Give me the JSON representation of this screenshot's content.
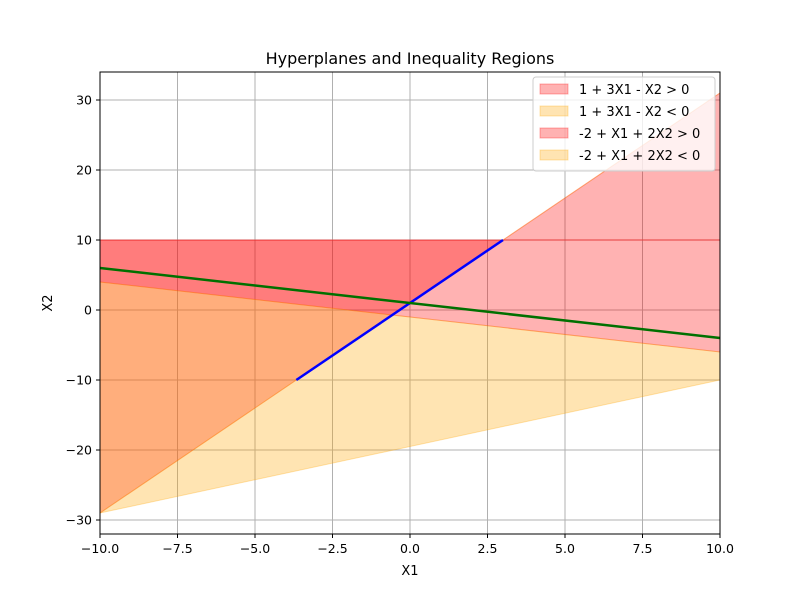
{
  "chart_data": {
    "type": "area",
    "title": "Hyperplanes and Inequality Regions",
    "xlabel": "X1",
    "ylabel": "X2",
    "xlim": [
      -10,
      10
    ],
    "ylim": [
      -32,
      34
    ],
    "grid": true,
    "legend_placement": "top-right",
    "x_ticks": [
      -10,
      -7.5,
      -5,
      -2.5,
      0,
      2.5,
      5,
      7.5,
      10
    ],
    "x_tick_labels": [
      "−10.0",
      "−7.5",
      "−5.0",
      "−2.5",
      "0.0",
      "2.5",
      "5.0",
      "7.5",
      "10.0"
    ],
    "y_ticks": [
      -30,
      -20,
      -10,
      0,
      10,
      20,
      30
    ],
    "y_tick_labels": [
      "−30",
      "−20",
      "−10",
      "0",
      "10",
      "20",
      "30"
    ],
    "regions": [
      {
        "name": "1 + 3X1 - X2 > 0",
        "color": "#ff0000",
        "opacity": 0.3,
        "lower_x": [
          -10,
          10
        ],
        "lower_y": [
          -29,
          31
        ],
        "upper_x": [
          -10,
          3,
          10
        ],
        "upper_y": [
          10,
          10,
          10
        ],
        "x_range": [
          -3.667,
          3
        ]
      },
      {
        "name": "1 + 3X1 - X2 < 0",
        "color": "#ffa500",
        "opacity": 0.3,
        "x_range": [
          -10,
          10
        ],
        "lower_x": [
          -10,
          10
        ],
        "lower_y": [
          -29,
          31
        ],
        "upper_x": [
          -10,
          -3.667,
          3,
          10
        ],
        "upper_y": [
          -29,
          -10,
          10,
          31
        ]
      },
      {
        "name": "-2 + X1 + 2X2 > 0",
        "color": "#ff0000",
        "opacity": 0.3,
        "lower_x": [
          -10,
          10
        ],
        "lower_y": [
          4,
          -6
        ],
        "upper_x": [
          -10,
          10
        ],
        "upper_y": [
          10,
          10
        ]
      },
      {
        "name": "-2 + X1 + 2X2 < 0",
        "color": "#ffa500",
        "opacity": 0.3,
        "lower_x": [
          -10,
          10
        ],
        "lower_y": [
          -29,
          -10
        ],
        "upper_x": [
          -10,
          10
        ],
        "upper_y": [
          4,
          -6
        ]
      }
    ],
    "lines": [
      {
        "color": "#0000ff",
        "x": [
          -3.667,
          3
        ],
        "y": [
          -10,
          10
        ]
      },
      {
        "color": "#007000",
        "x": [
          -10,
          10
        ],
        "y": [
          6,
          -4
        ]
      }
    ],
    "legend": [
      {
        "label": "1 + 3X1 - X2 > 0",
        "color": "#ff0000",
        "opacity": 0.3
      },
      {
        "label": "1 + 3X1 - X2 < 0",
        "color": "#ffa500",
        "opacity": 0.3
      },
      {
        "label": "-2 + X1 + 2X2 > 0",
        "color": "#ff0000",
        "opacity": 0.3
      },
      {
        "label": "-2 + X1 + 2X2 < 0",
        "color": "#ffa500",
        "opacity": 0.3
      }
    ]
  }
}
